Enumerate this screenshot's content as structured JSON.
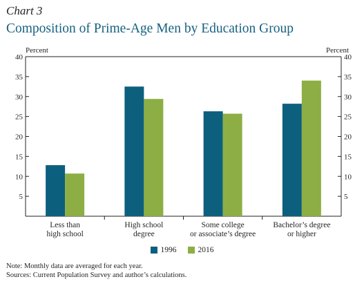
{
  "header": {
    "chart_label": "Chart 3",
    "title": "Composition of Prime-Age Men by Education Group"
  },
  "axis": {
    "left_unit": "Percent",
    "right_unit": "Percent"
  },
  "notes": {
    "note": "Note: Monthly data are averaged for each year.",
    "sources": "Sources: Current Population Survey and author’s calculations."
  },
  "colors": {
    "series_1996": "#0d5f7e",
    "series_2016": "#8dae44"
  },
  "chart_data": {
    "type": "bar",
    "title": "Composition of Prime-Age Men by Education Group",
    "ylabel": "Percent",
    "ylim": [
      0,
      40
    ],
    "yticks": [
      5,
      10,
      15,
      20,
      25,
      30,
      35,
      40
    ],
    "categories": [
      [
        "Less than",
        "high school"
      ],
      [
        "High school",
        "degree"
      ],
      [
        "Some college",
        "or associate’s degree"
      ],
      [
        "Bachelor’s degree",
        "or higher"
      ]
    ],
    "series": [
      {
        "name": "1996",
        "color": "#0d5f7e",
        "values": [
          12.8,
          32.5,
          26.3,
          28.2
        ]
      },
      {
        "name": "2016",
        "color": "#8dae44",
        "values": [
          10.7,
          29.4,
          25.7,
          34.0
        ]
      }
    ],
    "legend": "bottom-center",
    "grid": false
  }
}
